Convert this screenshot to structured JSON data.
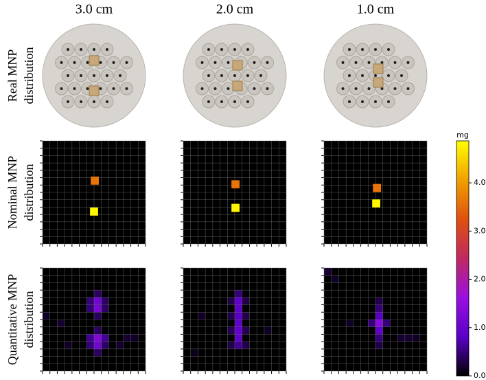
{
  "chart_data": {
    "type": "heatmap",
    "columns": [
      "3.0 cm",
      "2.0 cm",
      "1.0 cm"
    ],
    "rows": [
      [
        "Real MNP",
        "distribution"
      ],
      [
        "Nominal MNP",
        "distribution"
      ],
      [
        "Quantitative MNP",
        "distribution"
      ]
    ],
    "xlim": [
      0,
      14
    ],
    "ylim": [
      0,
      14
    ],
    "ticks": [
      0,
      1,
      2,
      3,
      4,
      5,
      6,
      7,
      8,
      9,
      10,
      11,
      12,
      13,
      14
    ],
    "grid": true,
    "nominal": [
      [
        {
          "x": 7.1,
          "y": 5.4,
          "value": 3.6
        },
        {
          "x": 7.0,
          "y": 9.6,
          "value": 4.8
        }
      ],
      [
        {
          "x": 7.1,
          "y": 5.9,
          "value": 3.6
        },
        {
          "x": 7.1,
          "y": 9.1,
          "value": 4.8
        }
      ],
      [
        {
          "x": 7.2,
          "y": 6.4,
          "value": 3.6
        },
        {
          "x": 7.1,
          "y": 8.5,
          "value": 4.8
        }
      ]
    ],
    "quantitative": [
      [
        [
          6,
          4,
          0.5
        ],
        [
          7,
          4,
          1.1
        ],
        [
          8,
          4,
          0.4
        ],
        [
          6,
          5,
          0.5
        ],
        [
          7,
          5,
          1.2
        ],
        [
          8,
          5,
          0.4
        ],
        [
          7,
          3,
          0.4
        ],
        [
          7,
          6,
          0.4
        ],
        [
          6,
          9,
          0.6
        ],
        [
          7,
          9,
          1.3
        ],
        [
          8,
          9,
          0.6
        ],
        [
          6,
          10,
          0.5
        ],
        [
          7,
          10,
          1.1
        ],
        [
          8,
          10,
          0.4
        ],
        [
          7,
          8,
          0.4
        ],
        [
          7,
          11,
          0.4
        ],
        [
          0,
          6,
          0.15
        ],
        [
          2,
          7,
          0.2
        ],
        [
          11,
          9,
          0.2
        ],
        [
          12,
          9,
          0.15
        ],
        [
          10,
          10,
          0.2
        ],
        [
          3,
          10,
          0.15
        ]
      ],
      [
        [
          7,
          3,
          0.5
        ],
        [
          7,
          4,
          0.9
        ],
        [
          7,
          5,
          0.9
        ],
        [
          7,
          6,
          0.8
        ],
        [
          7,
          7,
          0.9
        ],
        [
          7,
          8,
          0.95
        ],
        [
          7,
          9,
          0.9
        ],
        [
          7,
          10,
          0.6
        ],
        [
          6,
          4,
          0.3
        ],
        [
          8,
          4,
          0.3
        ],
        [
          6,
          6,
          0.3
        ],
        [
          8,
          6,
          0.3
        ],
        [
          6,
          8,
          0.35
        ],
        [
          8,
          8,
          0.35
        ],
        [
          6,
          10,
          0.3
        ],
        [
          8,
          10,
          0.3
        ],
        [
          2,
          6,
          0.15
        ],
        [
          11,
          8,
          0.15
        ],
        [
          1,
          11,
          0.12
        ]
      ],
      [
        [
          7,
          7,
          1.4
        ],
        [
          7,
          6,
          0.8
        ],
        [
          7,
          8,
          0.9
        ],
        [
          6,
          7,
          0.5
        ],
        [
          8,
          7,
          0.5
        ],
        [
          7,
          5,
          0.5
        ],
        [
          7,
          9,
          0.5
        ],
        [
          7,
          4,
          0.3
        ],
        [
          7,
          10,
          0.3
        ],
        [
          0,
          0,
          0.2
        ],
        [
          1,
          1,
          0.15
        ],
        [
          10,
          9,
          0.2
        ],
        [
          11,
          9,
          0.2
        ],
        [
          12,
          9,
          0.15
        ],
        [
          3,
          7,
          0.15
        ]
      ]
    ],
    "colorbar": {
      "label": "mg",
      "ylim": [
        0,
        4.87
      ],
      "yticks": [
        {
          "value": 0,
          "label": "0.0"
        },
        {
          "value": 1,
          "label": "1.0"
        },
        {
          "value": 2,
          "label": "2.0"
        },
        {
          "value": 3,
          "label": "3.0"
        },
        {
          "value": 4,
          "label": "4.0"
        }
      ]
    },
    "colormap": [
      "#000000",
      "#5a00c8",
      "#9a10e0",
      "#c02860",
      "#e05010",
      "#f0a000",
      "#ffff00"
    ]
  }
}
